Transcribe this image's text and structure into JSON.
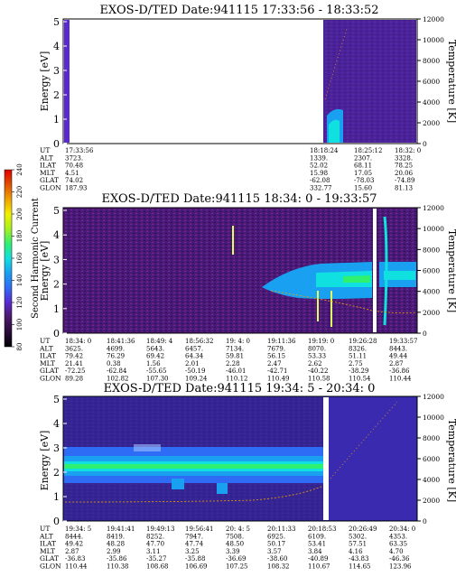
{
  "chart_data": {
    "type": "heatmap",
    "y_axis_left_label": "Energy [eV]",
    "y_axis_right_label": "Temperature [K]",
    "y_left_ticks": [
      "0",
      "1",
      "2",
      "3",
      "4",
      "5"
    ],
    "y_right_ticks": [
      "0",
      "2000",
      "4000",
      "6000",
      "8000",
      "10000",
      "12000"
    ],
    "colorbar": {
      "label": "Second Harmonic Current",
      "ticks": [
        "80",
        "100",
        "120",
        "140",
        "160",
        "180",
        "200",
        "220",
        "240"
      ],
      "scale": [
        "#000000",
        "#2a0c3a",
        "#4a1a6a",
        "#5a2ad0",
        "#2f6cf5",
        "#1aa0f0",
        "#10e0e0",
        "#30f070",
        "#a8f020",
        "#f0f000",
        "#f0a000",
        "#e05000",
        "#e00000"
      ]
    },
    "panels": [
      {
        "title": "EXOS-D/TED   Date:941115  17:33:56 - 18:33:52",
        "orbit_rows": [
          {
            "label": "UT",
            "values": [
              "17:33:56",
              "18:18:24",
              "18:25:12",
              "18:32: 0"
            ]
          },
          {
            "label": "ALT",
            "values": [
              "3723.",
              "1339.",
              "2307.",
              "3328."
            ]
          },
          {
            "label": "ILAT",
            "values": [
              "70.48",
              "52.02",
              "68.11",
              "78.25"
            ]
          },
          {
            "label": "MLT",
            "values": [
              "4.51",
              "15.98",
              "17.05",
              "20.06"
            ]
          },
          {
            "label": "GLAT",
            "values": [
              "74.02",
              "-62.08",
              "-78.03",
              "-74.89"
            ]
          },
          {
            "label": "GLON",
            "values": [
              "187.93",
              "332.77",
              "15.60",
              "81.13"
            ]
          }
        ]
      },
      {
        "title": "EXOS-D/TED   Date:941115  18:34: 0 - 19:33:57",
        "orbit_rows": [
          {
            "label": "UT",
            "values": [
              "18:34: 0",
              "18:41:36",
              "18:49: 4",
              "18:56:32",
              "19: 4: 0",
              "19:11:36",
              "19:19: 0",
              "19:26:28",
              "19:33:57"
            ]
          },
          {
            "label": "ALT",
            "values": [
              "3625.",
              "4699.",
              "5643.",
              "6457.",
              "7134.",
              "7679.",
              "8070.",
              "8326.",
              "8443."
            ]
          },
          {
            "label": "ILAT",
            "values": [
              "79.42",
              "76.29",
              "69.42",
              "64.34",
              "59.81",
              "56.15",
              "53.33",
              "51.11",
              "49.44"
            ]
          },
          {
            "label": "MLT",
            "values": [
              "21.41",
              "0.38",
              "1.56",
              "2.01",
              "2.28",
              "2.47",
              "2.62",
              "2.75",
              "2.87"
            ]
          },
          {
            "label": "GLAT",
            "values": [
              "-72.25",
              "-62.84",
              "-55.65",
              "-50.19",
              "-46.01",
              "-42.71",
              "-40.22",
              "-38.29",
              "-36.86"
            ]
          },
          {
            "label": "GLON",
            "values": [
              "89.28",
              "102.82",
              "107.30",
              "109.24",
              "110.12",
              "110.49",
              "110.58",
              "110.54",
              "110.44"
            ]
          }
        ]
      },
      {
        "title": "EXOS-D/TED   Date:941115  19:34: 5 - 20:34: 0",
        "orbit_rows": [
          {
            "label": "UT",
            "values": [
              "19:34: 5",
              "19:41:41",
              "19:49:13",
              "19:56:41",
              "20: 4: 5",
              "20:11:33",
              "20:18:53",
              "20:26:49",
              "20:34: 0"
            ]
          },
          {
            "label": "ALT",
            "values": [
              "8444.",
              "8419.",
              "8252.",
              "7947.",
              "7508.",
              "6925.",
              "6109.",
              "5302.",
              "4353."
            ]
          },
          {
            "label": "ILAT",
            "values": [
              "49.42",
              "48.28",
              "47.70",
              "47.74",
              "48.50",
              "50.17",
              "53.41",
              "57.51",
              "63.35"
            ]
          },
          {
            "label": "MLT",
            "values": [
              "2.87",
              "2.99",
              "3.11",
              "3.25",
              "3.39",
              "3.57",
              "3.84",
              "4.16",
              "4.70"
            ]
          },
          {
            "label": "GLAT",
            "values": [
              "-36.83",
              "-35.86",
              "-35.27",
              "-35.88",
              "-36.69",
              "-38.60",
              "-40.89",
              "-43.83",
              "-46.36"
            ]
          },
          {
            "label": "GLON",
            "values": [
              "110.44",
              "110.38",
              "108.68",
              "106.69",
              "107.25",
              "108.32",
              "110.67",
              "114.65",
              "123.96"
            ]
          }
        ]
      }
    ]
  }
}
